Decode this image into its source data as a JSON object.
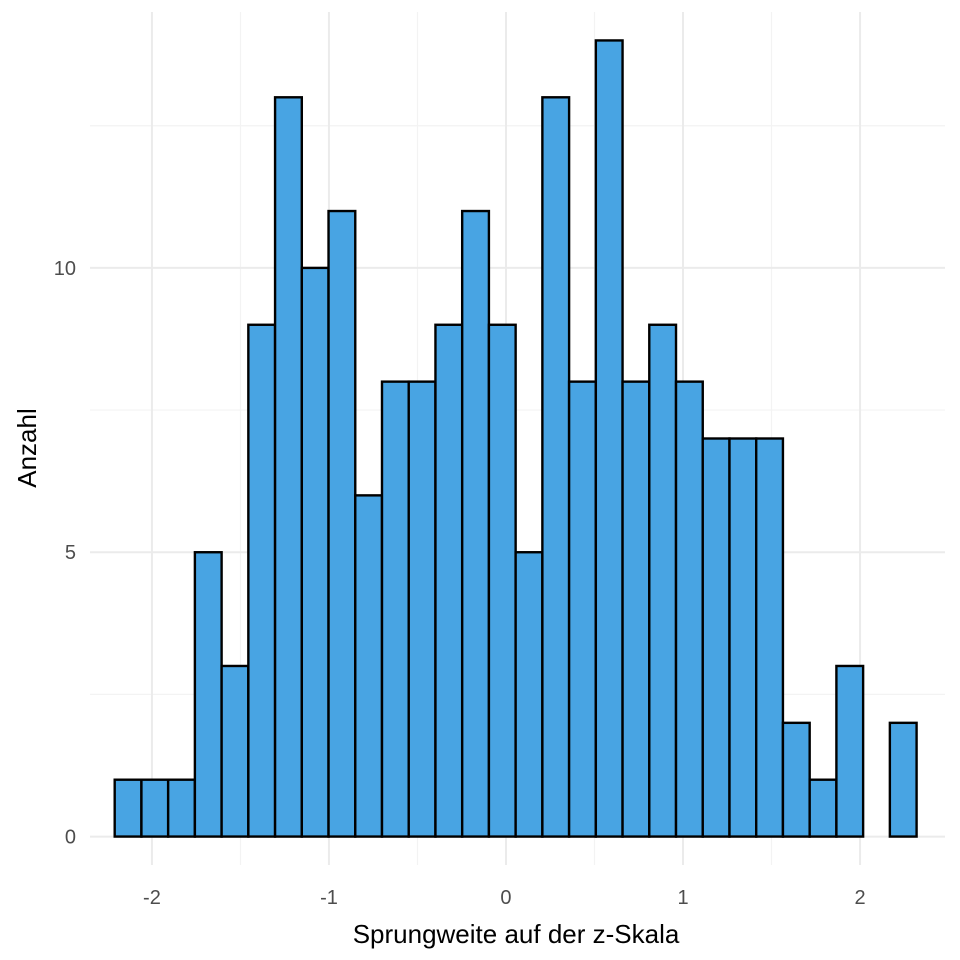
{
  "chart_data": {
    "type": "bar",
    "subtype": "histogram",
    "title": "",
    "xlabel": "Sprungweite auf der z-Skala",
    "ylabel": "Anzahl",
    "xlim": [
      -2.35,
      2.48
    ],
    "ylim": [
      -0.5,
      14.5
    ],
    "bin_width": 0.151,
    "bin_centers": [
      -2.135,
      -1.984,
      -1.833,
      -1.682,
      -1.531,
      -1.38,
      -1.229,
      -1.078,
      -0.927,
      -0.776,
      -0.625,
      -0.474,
      -0.323,
      -0.172,
      -0.021,
      0.13,
      0.281,
      0.432,
      0.583,
      0.734,
      0.885,
      1.036,
      1.187,
      1.338,
      1.489,
      1.64,
      1.791,
      1.942,
      2.093,
      2.244
    ],
    "values": [
      1,
      1,
      1,
      5,
      3,
      9,
      13,
      10,
      11,
      6,
      8,
      8,
      9,
      11,
      9,
      5,
      13,
      8,
      14,
      8,
      9,
      8,
      7,
      7,
      7,
      2,
      1,
      3,
      0,
      2
    ],
    "x_ticks": [
      -2,
      -1,
      0,
      1,
      2
    ],
    "x_tick_labels": [
      "-2",
      "-1",
      "0",
      "1",
      "2"
    ],
    "x_minor_ticks": [
      -1.5,
      -0.5,
      0.5,
      1.5
    ],
    "y_ticks": [
      0,
      5,
      10
    ],
    "y_tick_labels": [
      "0",
      "5",
      "10"
    ],
    "y_minor_ticks": [
      2.5,
      7.5,
      12.5
    ],
    "grid": true,
    "legend": "none",
    "colors": {
      "bar_fill": "#48A4E3",
      "bar_stroke": "#000000",
      "grid_major": "#EBEBEB",
      "grid_minor": "#F3F3F3",
      "tick_text": "#4D4D4D",
      "title_text": "#000000"
    }
  }
}
